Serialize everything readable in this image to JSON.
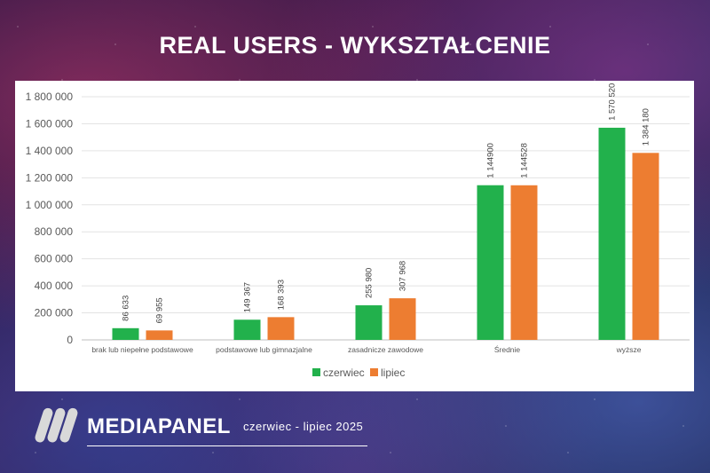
{
  "title": "REAL USERS - WYKSZTAŁCENIE",
  "colors": {
    "czerwiec": "#22b14c",
    "lipiec": "#ed7d31"
  },
  "chart_data": {
    "type": "bar",
    "categories": [
      "brak lub niepełne podstawowe",
      "podstawowe lub gimnazjalne",
      "zasadnicze zawodowe",
      "Średnie",
      "wyższe"
    ],
    "series": [
      {
        "name": "czerwiec",
        "values": [
          86633,
          149367,
          255980,
          1144900,
          1570520
        ],
        "labels": [
          "86 633",
          "149 367",
          "255 980",
          "1 144900",
          "1 570 520"
        ]
      },
      {
        "name": "lipiec",
        "values": [
          69955,
          168393,
          307968,
          1144528,
          1384180
        ],
        "labels": [
          "69 955",
          "168 393",
          "307 968",
          "1 144528",
          "1 384 180"
        ]
      }
    ],
    "yticks": [
      "0",
      "200 000",
      "400 000",
      "600 000",
      "800 000",
      "1 000 000",
      "1 200 000",
      "1 400 000",
      "1 600 000",
      "1 800 000"
    ],
    "ylim": [
      0,
      1800000
    ],
    "legend": "bottom"
  },
  "footer": {
    "brand": "MEDIAPANEL",
    "period": "czerwiec - lipiec 2025"
  }
}
